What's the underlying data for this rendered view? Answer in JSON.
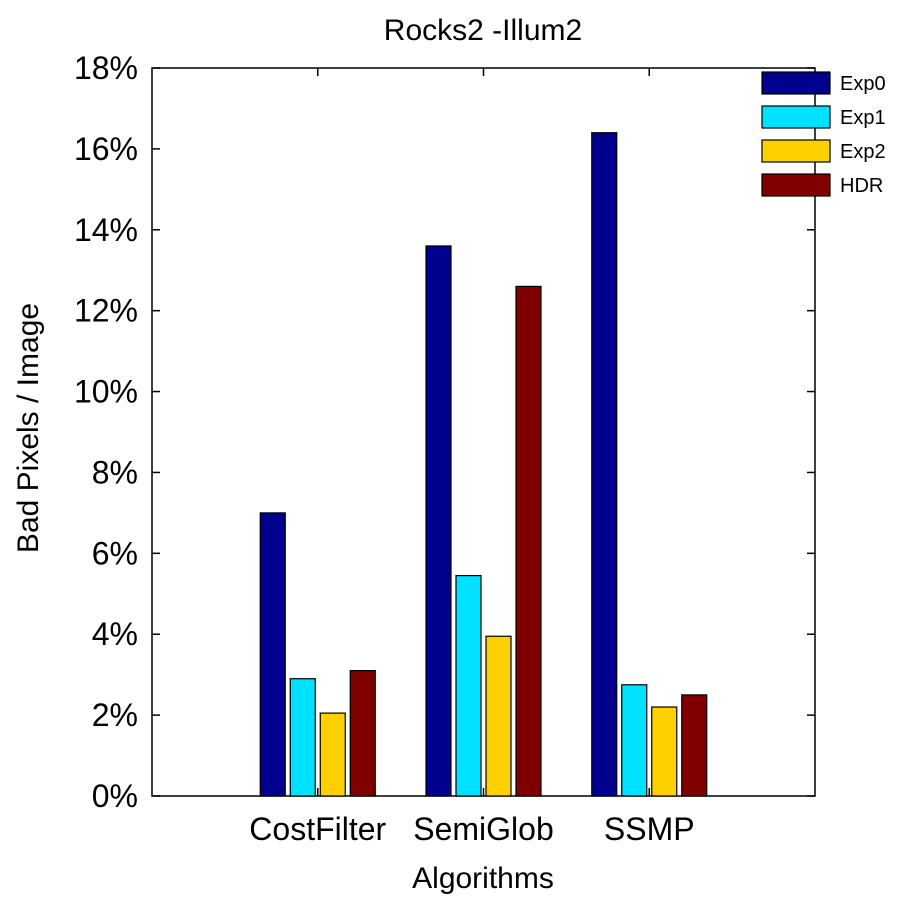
{
  "chart_data": {
    "type": "bar",
    "title": "Rocks2 -Illum2",
    "xlabel": "Algorithms",
    "ylabel": "Bad Pixels / Image",
    "categories": [
      "CostFilter",
      "SemiGlob",
      "SSMP"
    ],
    "ylim": [
      0,
      18
    ],
    "yticks": [
      0,
      2,
      4,
      6,
      8,
      10,
      12,
      14,
      16,
      18
    ],
    "ytick_suffix": "%",
    "legend_position": "top-right",
    "series": [
      {
        "name": "Exp0",
        "color": "#00008f",
        "values": [
          7.0,
          13.6,
          16.4
        ]
      },
      {
        "name": "Exp1",
        "color": "#00e0ff",
        "values": [
          2.9,
          5.45,
          2.75
        ]
      },
      {
        "name": "Exp2",
        "color": "#ffd000",
        "values": [
          2.05,
          3.95,
          2.2
        ]
      },
      {
        "name": "HDR",
        "color": "#800000",
        "values": [
          3.1,
          12.6,
          2.5
        ]
      }
    ]
  }
}
